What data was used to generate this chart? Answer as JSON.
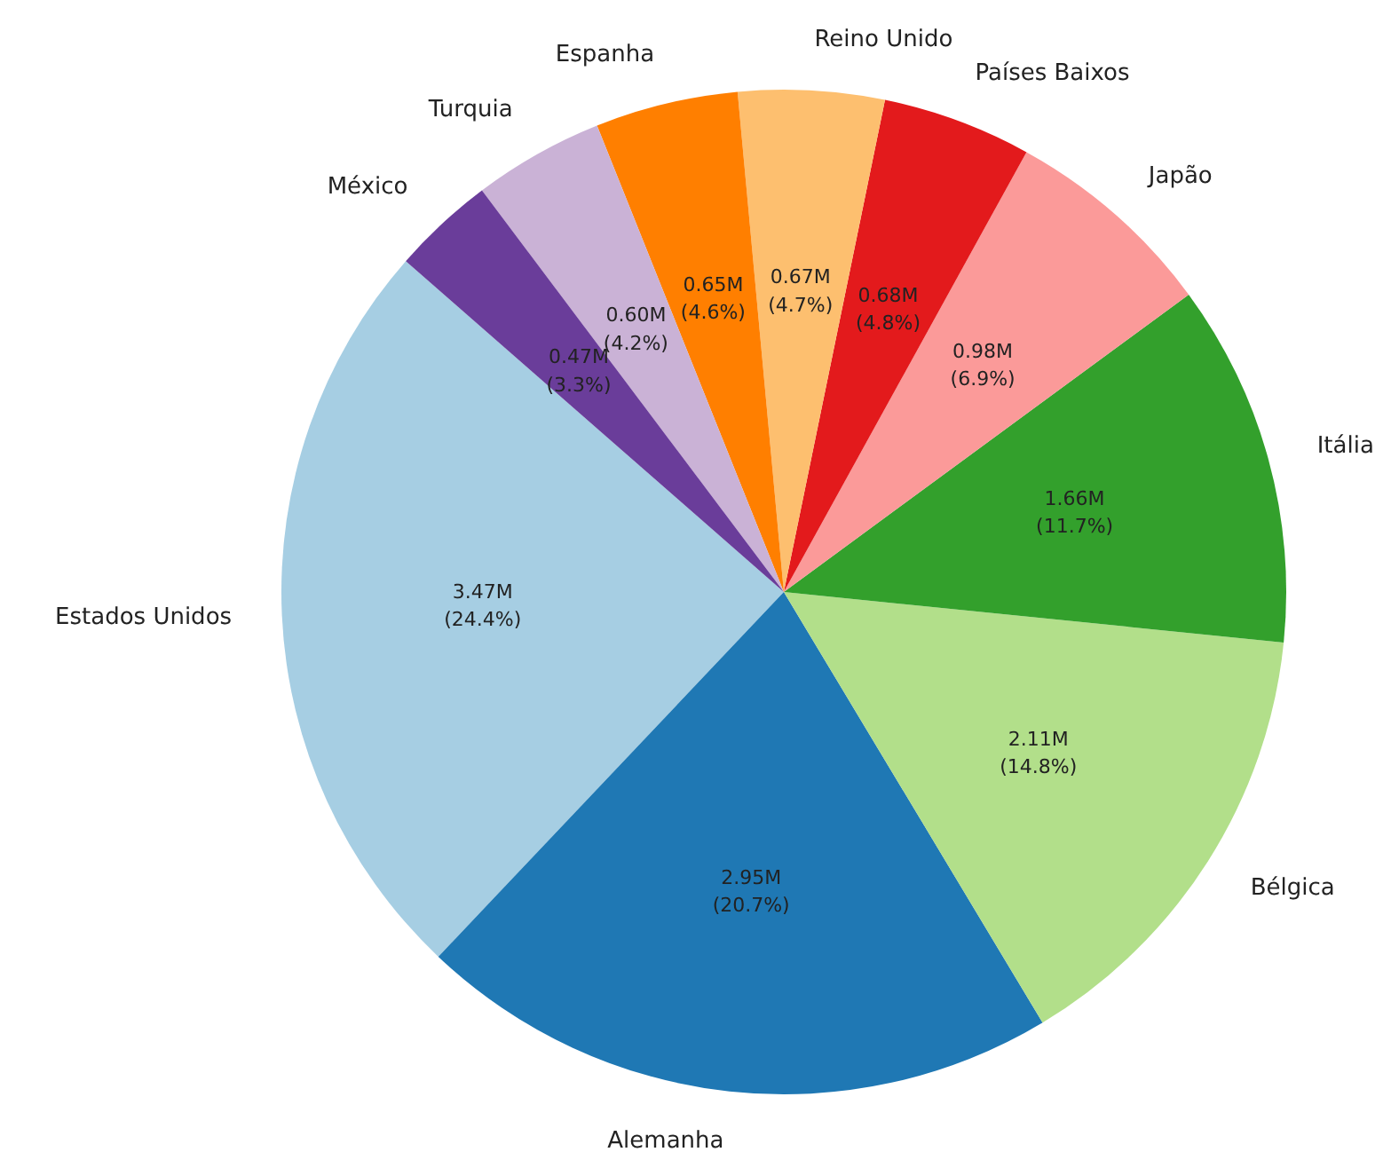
{
  "chart_data": {
    "type": "pie",
    "categories": [
      "Estados Unidos",
      "Alemanha",
      "Bélgica",
      "Itália",
      "Japão",
      "Países Baixos",
      "Reino Unido",
      "Espanha",
      "Turquia",
      "México"
    ],
    "values": [
      24.4,
      20.7,
      14.8,
      11.7,
      6.9,
      4.8,
      4.7,
      4.6,
      4.2,
      3.3
    ],
    "colors": [
      "#a6cee3",
      "#1f78b4",
      "#b2df8a",
      "#33a02c",
      "#fb9a99",
      "#e31a1c",
      "#fdbf6f",
      "#ff7f00",
      "#cab2d6",
      "#6a3d9a"
    ],
    "value_labels": [
      "3.47M\n(24.4%)",
      "2.95M\n(20.7%)",
      "2.11M\n(14.8%)",
      "1.66M\n(11.7%)",
      "0.98M\n(6.9%)",
      "0.68M\n(4.8%)",
      "0.67M\n(4.7%)",
      "0.65M\n(4.6%)",
      "0.60M\n(4.2%)",
      "0.47M\n(3.3%)"
    ]
  }
}
